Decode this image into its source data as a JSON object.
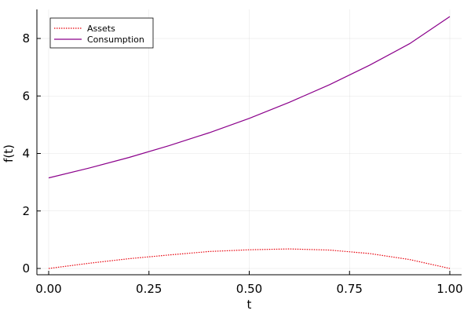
{
  "chart_data": {
    "type": "line",
    "title": "",
    "xlabel": "t",
    "ylabel": "f(t)",
    "xlim": [
      0,
      1
    ],
    "ylim": [
      -0.2,
      9.0
    ],
    "x_ticks": [
      0.0,
      0.25,
      0.5,
      0.75,
      1.0
    ],
    "x_tick_labels": [
      "0.00",
      "0.25",
      "0.50",
      "0.75",
      "1.00"
    ],
    "y_ticks": [
      0,
      2,
      4,
      6,
      8
    ],
    "y_tick_labels": [
      "0",
      "2",
      "4",
      "6",
      "8"
    ],
    "grid": true,
    "legend_position": "top-left",
    "x": [
      0.0,
      0.1,
      0.2,
      0.3,
      0.4,
      0.5,
      0.6,
      0.7,
      0.8,
      0.9,
      1.0
    ],
    "series": [
      {
        "name": "Assets",
        "color": "#e8000b",
        "style": "dotted",
        "values": [
          0.0,
          0.18,
          0.34,
          0.47,
          0.59,
          0.65,
          0.68,
          0.64,
          0.52,
          0.31,
          0.0
        ]
      },
      {
        "name": "Consumption",
        "color": "#8b008b",
        "style": "solid",
        "values": [
          3.15,
          3.49,
          3.86,
          4.27,
          4.72,
          5.22,
          5.78,
          6.39,
          7.07,
          7.82,
          8.76
        ]
      }
    ]
  }
}
